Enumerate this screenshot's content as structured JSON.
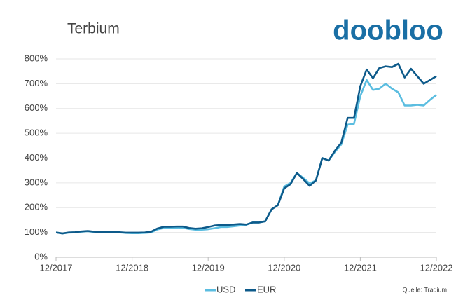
{
  "brand": "doobloo",
  "source": "Quelle: Tradium",
  "chart_data": {
    "type": "line",
    "title": "Terbium",
    "categories": [
      "12/2017",
      null,
      null,
      null,
      null,
      null,
      null,
      null,
      null,
      null,
      null,
      null,
      "12/2018",
      null,
      null,
      null,
      null,
      null,
      null,
      null,
      null,
      null,
      null,
      null,
      "12/2019",
      null,
      null,
      null,
      null,
      null,
      null,
      null,
      null,
      null,
      null,
      null,
      "12/2020",
      null,
      null,
      null,
      null,
      null,
      null,
      null,
      null,
      null,
      null,
      null,
      "12/2021",
      null,
      null,
      null,
      null,
      null,
      null,
      null,
      null,
      null,
      null,
      null,
      "12/2022"
    ],
    "series": [
      {
        "name": "USD",
        "color": "#5bbde0",
        "values": [
          100,
          96,
          99,
          100,
          103,
          105,
          102,
          101,
          101,
          102,
          100,
          98,
          97,
          97,
          98,
          100,
          112,
          118,
          118,
          120,
          119,
          114,
          111,
          111,
          113,
          117,
          122,
          122,
          125,
          128,
          131,
          140,
          140,
          145,
          193,
          210,
          285,
          300,
          340,
          320,
          298,
          310,
          400,
          390,
          425,
          455,
          535,
          538,
          650,
          715,
          675,
          680,
          700,
          680,
          665,
          612,
          612,
          615,
          612,
          635,
          655
        ]
      },
      {
        "name": "EUR",
        "color": "#0d5a8a",
        "values": [
          100,
          96,
          100,
          101,
          104,
          106,
          103,
          102,
          102,
          103,
          101,
          99,
          99,
          99,
          100,
          103,
          116,
          123,
          123,
          124,
          124,
          118,
          115,
          117,
          122,
          128,
          130,
          130,
          132,
          134,
          132,
          140,
          140,
          145,
          193,
          210,
          278,
          295,
          340,
          315,
          288,
          310,
          400,
          390,
          430,
          462,
          562,
          562,
          690,
          757,
          722,
          763,
          770,
          767,
          780,
          725,
          760,
          730,
          700,
          715,
          730
        ]
      }
    ],
    "ylim": [
      0,
      800
    ],
    "yticks": [
      {
        "value": 0,
        "label": "0%"
      },
      {
        "value": 100,
        "label": "100%"
      },
      {
        "value": 200,
        "label": "200%"
      },
      {
        "value": 300,
        "label": "300%"
      },
      {
        "value": 400,
        "label": "400%"
      },
      {
        "value": 500,
        "label": "500%"
      },
      {
        "value": 600,
        "label": "600%"
      },
      {
        "value": 700,
        "label": "700%"
      },
      {
        "value": 800,
        "label": "800%"
      }
    ],
    "grid": true,
    "legend": "bottom"
  }
}
